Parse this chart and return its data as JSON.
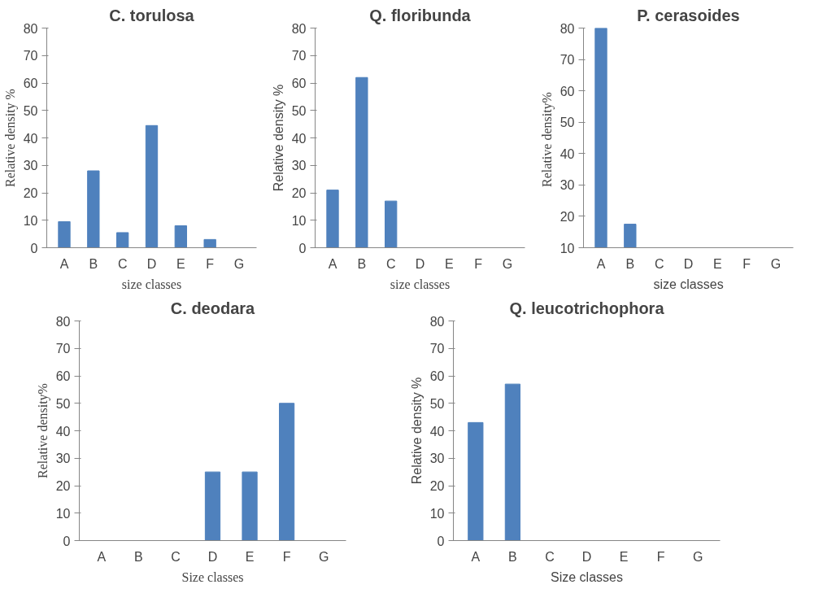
{
  "chart_data": [
    {
      "type": "bar",
      "title": "C. torulosa",
      "xlabel": "size classes",
      "ylabel": "Relative density %",
      "categories": [
        "A",
        "B",
        "C",
        "D",
        "E",
        "F",
        "G"
      ],
      "values": [
        9.5,
        28,
        5.5,
        44.5,
        8,
        3,
        0
      ],
      "color": "#4f81bd",
      "ylim": [
        0,
        80
      ],
      "yticks": [
        0,
        10,
        20,
        30,
        40,
        50,
        60,
        70,
        80
      ],
      "grid": false
    },
    {
      "type": "bar",
      "title": "Q. floribunda",
      "xlabel": "size classes",
      "ylabel": "Relative density %",
      "categories": [
        "A",
        "B",
        "C",
        "D",
        "E",
        "F",
        "G"
      ],
      "values": [
        21,
        62,
        17,
        0,
        0,
        0,
        0
      ],
      "color": "#4f81bd",
      "ylim": [
        0,
        80
      ],
      "yticks": [
        0,
        10,
        20,
        30,
        40,
        50,
        60,
        70,
        80
      ],
      "grid": false
    },
    {
      "type": "bar",
      "title": "P. cerasoides",
      "xlabel": "size classes",
      "ylabel": "Relative  density%",
      "categories": [
        "A",
        "B",
        "C",
        "D",
        "E",
        "F",
        "G"
      ],
      "values": [
        80,
        17.5,
        null,
        null,
        null,
        null,
        null
      ],
      "color": "#4f81bd",
      "ylim": [
        10,
        80
      ],
      "yticks": [
        10,
        20,
        30,
        40,
        50,
        60,
        70,
        80
      ],
      "grid": false
    },
    {
      "type": "bar",
      "title": "C. deodara",
      "xlabel": "Size classes",
      "ylabel": "Relative density%",
      "categories": [
        "A",
        "B",
        "C",
        "D",
        "E",
        "F",
        "G"
      ],
      "values": [
        0,
        0,
        0,
        25,
        25,
        50,
        0
      ],
      "color": "#4f81bd",
      "ylim": [
        0,
        80
      ],
      "yticks": [
        0,
        10,
        20,
        30,
        40,
        50,
        60,
        70,
        80
      ],
      "grid": false
    },
    {
      "type": "bar",
      "title": "Q. leucotrichophora",
      "xlabel": "Size classes",
      "ylabel": "Relative density %",
      "categories": [
        "A",
        "B",
        "C",
        "D",
        "E",
        "F",
        "G"
      ],
      "values": [
        43,
        57,
        0,
        0,
        0,
        0,
        0
      ],
      "color": "#4f81bd",
      "ylim": [
        0,
        80
      ],
      "yticks": [
        0,
        10,
        20,
        30,
        40,
        50,
        60,
        70,
        80
      ],
      "grid": false
    }
  ]
}
